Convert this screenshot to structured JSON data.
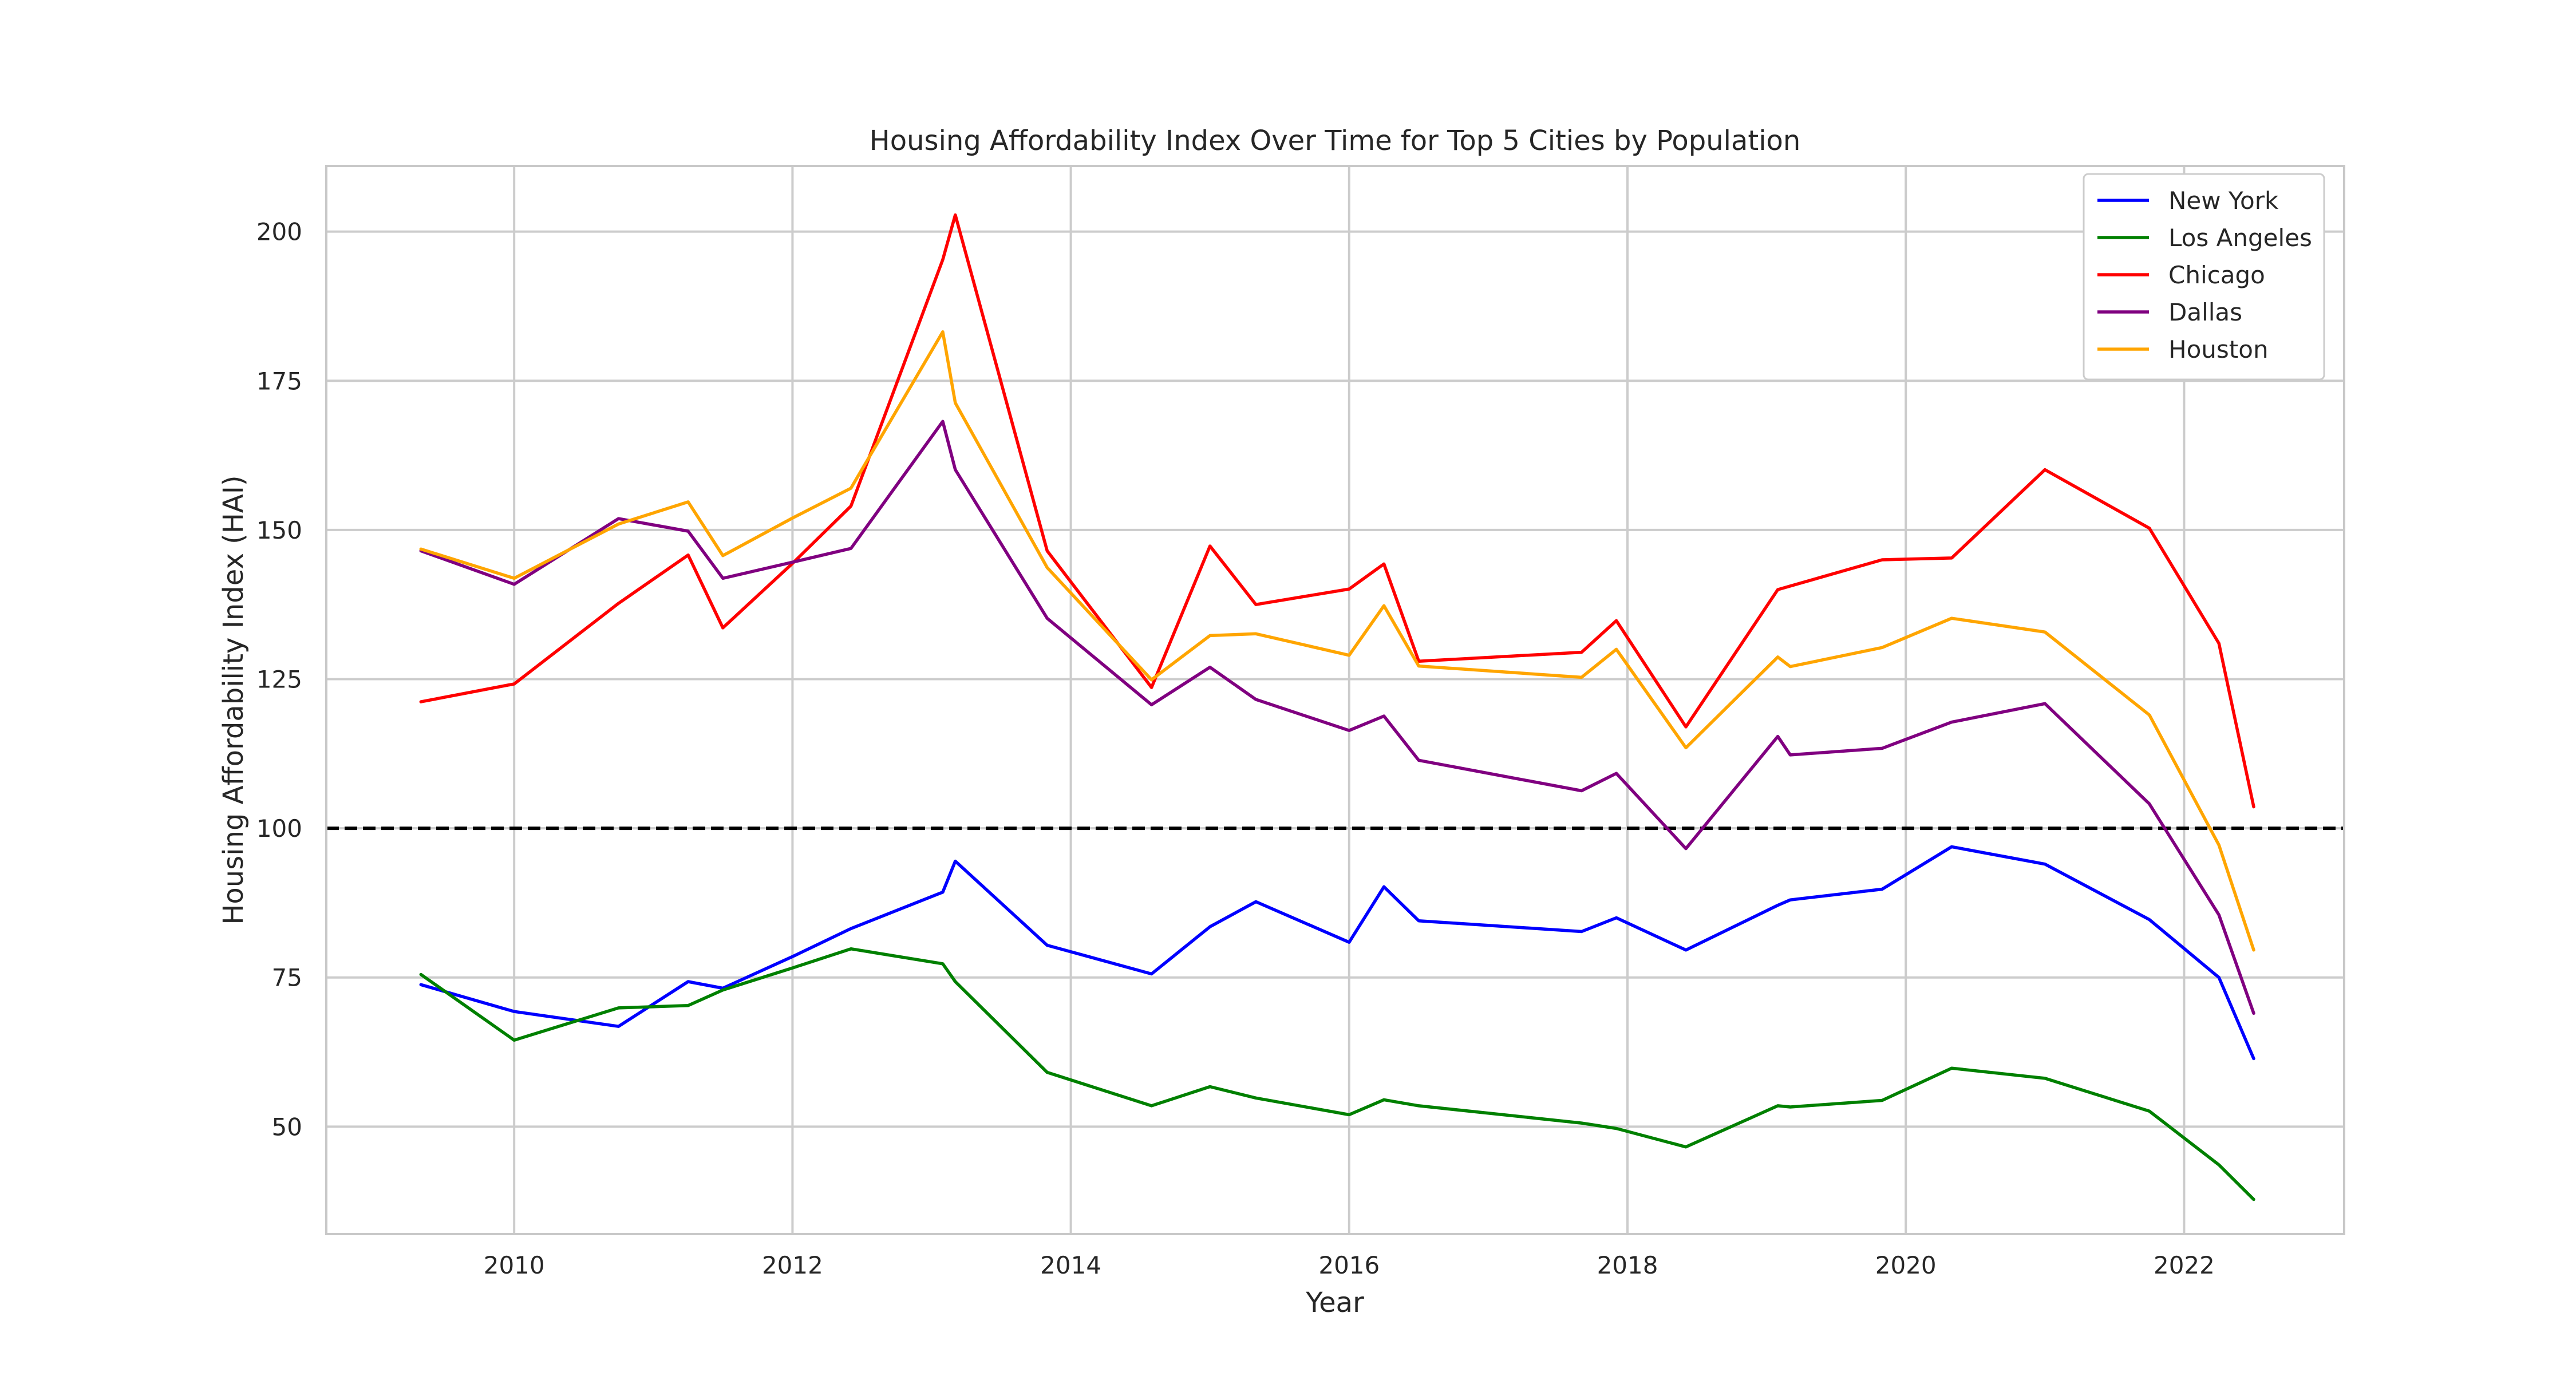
{
  "chart_data": {
    "type": "line",
    "title": "Housing Affordability Index Over Time for Top 5 Cities by Population",
    "xlabel": "Year",
    "ylabel": "Housing Affordability Index (HAI)",
    "xlim": [
      2008.65,
      2023.15
    ],
    "ylim": [
      32,
      211
    ],
    "xticks": [
      2010,
      2012,
      2014,
      2016,
      2018,
      2020,
      2022
    ],
    "yticks": [
      50,
      75,
      100,
      125,
      150,
      175,
      200
    ],
    "grid": true,
    "legend": "top-right",
    "reference_line": {
      "y": 100,
      "style": "dashed",
      "color": "#000000"
    },
    "x": [
      2009.33,
      2010.0,
      2010.75,
      2011.25,
      2011.5,
      2012.0,
      2012.42,
      2013.08,
      2013.17,
      2013.83,
      2014.58,
      2015.0,
      2015.33,
      2016.0,
      2016.25,
      2016.5,
      2017.67,
      2017.92,
      2018.42,
      2019.08,
      2019.17,
      2019.83,
      2020.33,
      2021.0,
      2021.75,
      2022.25,
      2022.5
    ],
    "series": [
      {
        "name": "New York",
        "color": "#0000ff",
        "values": [
          73.8,
          69.3,
          66.8,
          74.3,
          73.2,
          78.5,
          83.2,
          89.3,
          94.5,
          80.4,
          75.6,
          83.5,
          87.7,
          80.9,
          90.2,
          84.5,
          82.7,
          85.0,
          79.6,
          87.1,
          88.0,
          89.8,
          96.9,
          94.0,
          84.7,
          75.0,
          61.4
        ]
      },
      {
        "name": "Los Angeles",
        "color": "#008000",
        "values": [
          75.5,
          64.5,
          69.9,
          70.3,
          72.9,
          76.6,
          79.8,
          77.3,
          74.3,
          59.1,
          53.5,
          56.7,
          54.8,
          52.0,
          54.5,
          53.5,
          50.6,
          49.7,
          46.6,
          53.5,
          53.3,
          54.4,
          59.8,
          58.1,
          52.6,
          43.6,
          37.8
        ]
      },
      {
        "name": "Chicago",
        "color": "#ff0000",
        "values": [
          121.2,
          124.2,
          137.7,
          145.8,
          133.6,
          144.4,
          154.0,
          195.3,
          202.8,
          146.5,
          123.6,
          147.3,
          137.5,
          140.1,
          144.3,
          128.0,
          129.5,
          134.8,
          117.0,
          140.0,
          140.6,
          145.0,
          145.3,
          160.1,
          150.3,
          131.0,
          103.6
        ]
      },
      {
        "name": "Dallas",
        "color": "#800080",
        "values": [
          146.5,
          140.9,
          151.9,
          149.8,
          141.9,
          144.6,
          146.9,
          168.2,
          160.1,
          135.2,
          120.7,
          127.0,
          121.6,
          116.4,
          118.8,
          111.4,
          106.3,
          109.2,
          96.6,
          115.4,
          112.3,
          113.4,
          117.8,
          120.9,
          104.1,
          85.5,
          69.0
        ]
      },
      {
        "name": "Houston",
        "color": "#ffa500",
        "values": [
          146.8,
          141.9,
          151.0,
          154.7,
          145.7,
          152.0,
          157.0,
          183.2,
          171.3,
          143.7,
          124.9,
          132.3,
          132.6,
          129.0,
          137.3,
          127.2,
          125.3,
          130.0,
          113.5,
          128.7,
          127.1,
          130.3,
          135.2,
          132.9,
          119.0,
          97.2,
          79.6
        ]
      }
    ]
  }
}
